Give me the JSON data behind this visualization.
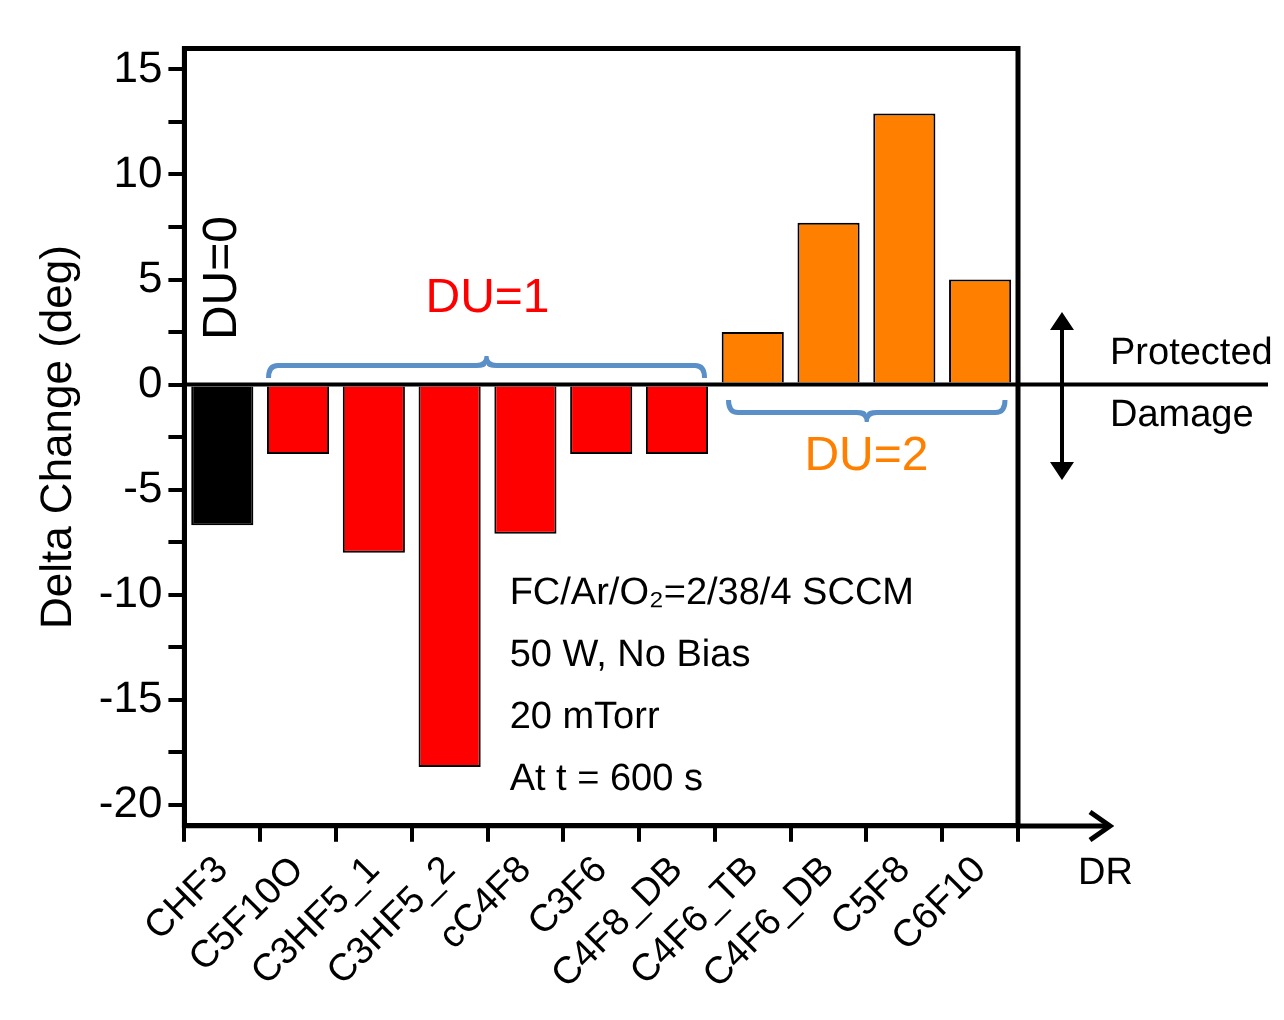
{
  "chart_data": {
    "type": "bar",
    "xlabel": "DR",
    "ylabel": "Delta Change (deg)",
    "categories": [
      "CHF3",
      "C5F10O",
      "C3HF5_1",
      "C3HF5_2",
      "cC4F8",
      "C3F6",
      "C4F8_DB",
      "C4F6_TB",
      "C4F6_DB",
      "C5F8",
      "C6F10"
    ],
    "values": [
      -6.7,
      -3.3,
      -8.0,
      -18.2,
      -7.1,
      -3.3,
      -3.3,
      2.5,
      7.7,
      12.9,
      5.0
    ],
    "colors": [
      "#000000",
      "#ff0000",
      "#ff0000",
      "#ff0000",
      "#ff0000",
      "#ff0000",
      "#ff0000",
      "#ff8000",
      "#ff8000",
      "#ff8000",
      "#ff8000"
    ],
    "ylim": [
      -21,
      16
    ],
    "yticks": [
      -20,
      {
        "value": -17.5,
        "label": null
      },
      -15,
      {
        "value": -12.5,
        "label": null
      },
      -10,
      {
        "value": -7.5,
        "label": null
      },
      -5,
      {
        "value": -2.5,
        "label": null
      },
      0,
      {
        "value": 2.5,
        "label": null
      },
      5,
      {
        "value": 7.5,
        "label": null
      },
      10,
      {
        "value": 12.5,
        "label": null
      },
      15
    ],
    "ref_lines": [
      {
        "axis": "y",
        "value": 0,
        "color": "#000000"
      }
    ],
    "annotations": [
      "DU=0",
      "DU=1",
      "DU=2",
      "FC/Ar/O₂=2/38/4 SCCM",
      "50 W, No Bias",
      "20 mTorr",
      "At t = 600 s",
      "Protected",
      "Damage"
    ],
    "grid": false,
    "legend": false
  }
}
